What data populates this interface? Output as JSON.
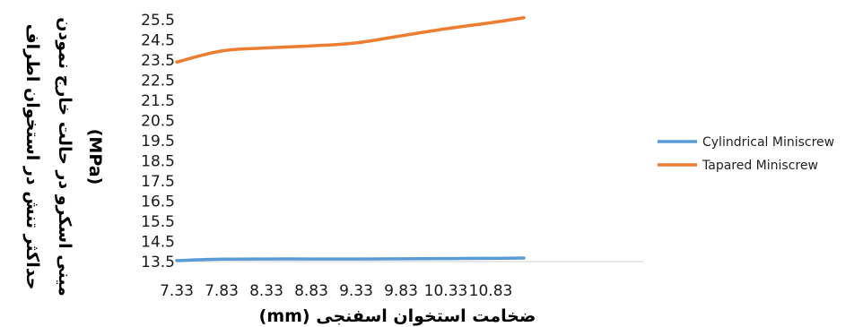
{
  "chart_data": {
    "type": "line",
    "x": [
      7.33,
      7.83,
      8.33,
      8.83,
      9.33,
      9.83,
      10.33,
      10.83,
      11.2
    ],
    "x_tick_labels": [
      "7.33",
      "7.83",
      "8.33",
      "8.83",
      "9.33",
      "9.83",
      "10.33",
      "10.83"
    ],
    "xlim": [
      7.33,
      11.2
    ],
    "ylim": [
      13.5,
      25.5
    ],
    "y_tick_labels": [
      "13.5",
      "14.5",
      "15.5",
      "16.5",
      "17.5",
      "18.5",
      "19.5",
      "20.5",
      "21.5",
      "22.5",
      "23.5",
      "24.5",
      "25.5"
    ],
    "xlabel": "ضخامت استخوان اسفنجی (mm)",
    "ylabel_lines": [
      "حداکثر تنش در استخوان اطراف",
      "مینی اسکرو در حالت خارج نمودن",
      "(MPa)"
    ],
    "grid": false,
    "legend_position": "right",
    "series": [
      {
        "name": "Cylindrical Miniscrew",
        "color": "#5B9BD5",
        "values": [
          13.55,
          13.62,
          13.63,
          13.63,
          13.63,
          13.64,
          13.65,
          13.66,
          13.68
        ]
      },
      {
        "name": "Tapared Miniscrew",
        "color": "#ED7D31",
        "values": [
          23.4,
          23.95,
          24.1,
          24.2,
          24.35,
          24.7,
          25.05,
          25.35,
          25.6
        ]
      }
    ]
  }
}
